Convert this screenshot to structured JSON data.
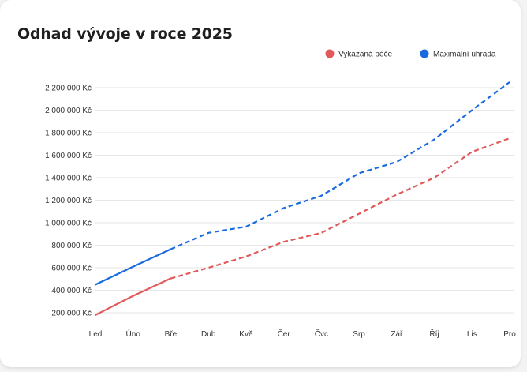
{
  "chart_data": {
    "type": "line",
    "title": "Odhad vývoje v roce 2025",
    "categories": [
      "Led",
      "Úno",
      "Bře",
      "Dub",
      "Kvě",
      "Čer",
      "Čvc",
      "Srp",
      "Zář",
      "Říj",
      "Lis",
      "Pro"
    ],
    "yticks": [
      200000,
      400000,
      600000,
      800000,
      1000000,
      1200000,
      1400000,
      1600000,
      1800000,
      2000000,
      2200000
    ],
    "ytick_labels": [
      "200 000 Kč",
      "400 000 Kč",
      "600 000 Kč",
      "800 000 Kč",
      "1 000 000 Kč",
      "1 200 000 Kč",
      "1 400 000 Kč",
      "1 600 000 Kč",
      "1 800 000 Kč",
      "2 000 000 Kč",
      "2 200 000 Kč"
    ],
    "ylim": [
      150000,
      2270000
    ],
    "grid": true,
    "legend_position": "top-right",
    "actual_until_index": 2,
    "series": [
      {
        "name": "Vykázaná péče",
        "color": "#e05a5a",
        "values": [
          180000,
          350000,
          505000,
          600000,
          700000,
          830000,
          910000,
          1080000,
          1250000,
          1400000,
          1630000,
          1750000
        ]
      },
      {
        "name": "Maximální úhrada",
        "color": "#1a6be0",
        "values": [
          450000,
          610000,
          765000,
          910000,
          965000,
          1130000,
          1240000,
          1440000,
          1540000,
          1740000,
          2000000,
          2250000
        ]
      }
    ]
  }
}
